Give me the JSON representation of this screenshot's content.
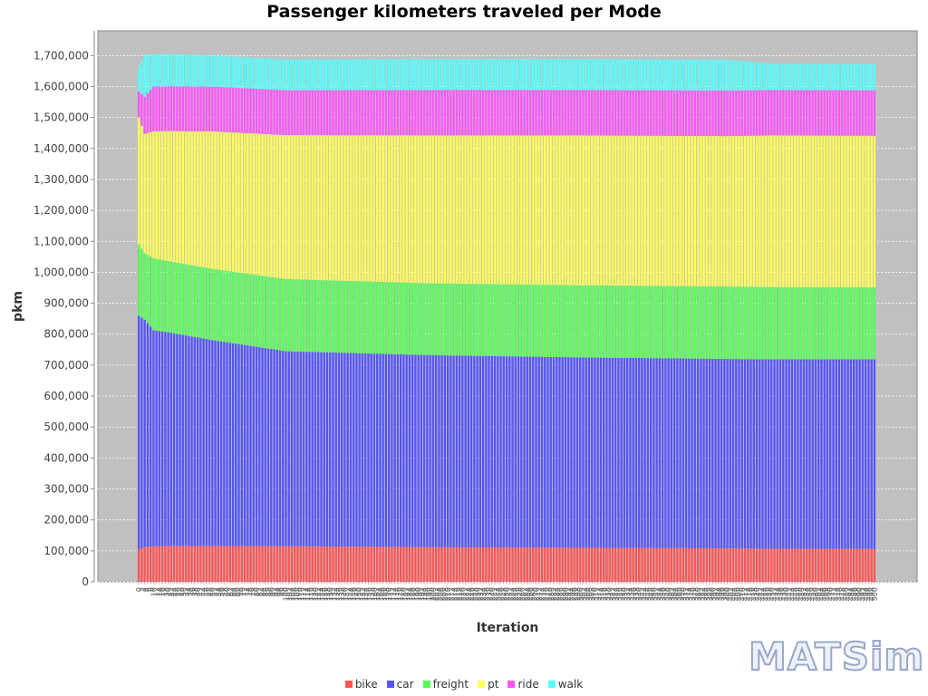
{
  "chart_data": {
    "type": "stacked-bar",
    "title": "Passenger kilometers traveled per Mode",
    "xlabel": "Iteration",
    "ylabel": "pkm",
    "ylim": [
      0,
      1780000
    ],
    "yticks": [
      0,
      100000,
      200000,
      300000,
      400000,
      500000,
      600000,
      700000,
      800000,
      900000,
      1000000,
      1100000,
      1200000,
      1300000,
      1400000,
      1500000,
      1600000,
      1700000
    ],
    "ytick_labels": [
      "0",
      "100,000",
      "200,000",
      "300,000",
      "400,000",
      "500,000",
      "600,000",
      "700,000",
      "800,000",
      "900,000",
      "1,000,000",
      "1,100,000",
      "1,200,000",
      "1,300,000",
      "1,400,000",
      "1,500,000",
      "1,600,000",
      "1,700,000"
    ],
    "x_range": [
      0,
      500
    ],
    "x_step": 2,
    "grid": true,
    "legend_position": "bottom",
    "series_anchors": {
      "iterations": [
        0,
        4,
        10,
        20,
        50,
        100,
        200,
        300,
        400,
        430,
        500
      ],
      "bike": [
        105000,
        112000,
        115000,
        116000,
        116000,
        115000,
        112000,
        110000,
        108000,
        107000,
        106000
      ],
      "car": [
        755000,
        735000,
        698000,
        690000,
        665000,
        630000,
        620000,
        615000,
        612000,
        612000,
        613000
      ],
      "freight": [
        230000,
        215000,
        232000,
        230000,
        230000,
        233000,
        232000,
        233000,
        234000,
        233000,
        232000
      ],
      "pt": [
        410000,
        385000,
        410000,
        420000,
        444000,
        465000,
        478000,
        484000,
        486000,
        490000,
        490000
      ],
      "ride": [
        85000,
        120000,
        145000,
        145000,
        145000,
        145000,
        147000,
        147000,
        147000,
        147000,
        147000
      ],
      "walk": [
        80000,
        135000,
        104000,
        104000,
        100000,
        100000,
        100000,
        100000,
        100000,
        85000,
        85000
      ]
    },
    "series": [
      {
        "name": "bike",
        "color": "#ff5555"
      },
      {
        "name": "car",
        "color": "#5555ff"
      },
      {
        "name": "freight",
        "color": "#55ff55"
      },
      {
        "name": "pt",
        "color": "#ffff55"
      },
      {
        "name": "ride",
        "color": "#ff55ff"
      },
      {
        "name": "walk",
        "color": "#55ffff"
      }
    ]
  },
  "logo_text": "MATSim"
}
